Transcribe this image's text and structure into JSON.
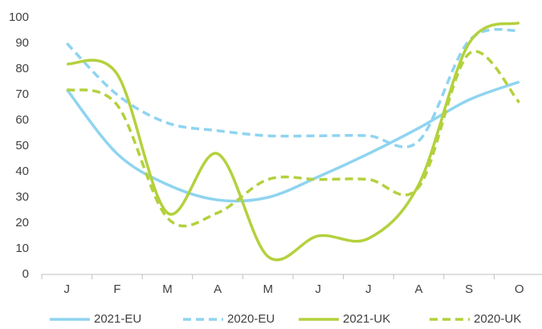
{
  "chart_data": {
    "type": "line",
    "categories": [
      "J",
      "F",
      "M",
      "A",
      "M",
      "J",
      "J",
      "A",
      "S",
      "O"
    ],
    "series": [
      {
        "name": "2021-EU",
        "color": "#8fd4f0",
        "dash": false,
        "values": [
          72,
          47,
          35,
          29,
          30,
          38,
          47,
          57,
          68,
          75
        ]
      },
      {
        "name": "2020-EU",
        "color": "#8fd4f0",
        "dash": true,
        "values": [
          90,
          70,
          59,
          56,
          54,
          54,
          54,
          52,
          91,
          95
        ]
      },
      {
        "name": "2021-UK",
        "color": "#b3d13d",
        "dash": false,
        "values": [
          82,
          78,
          24,
          47,
          7,
          15,
          14,
          35,
          90,
          98
        ]
      },
      {
        "name": "2020-UK",
        "color": "#b3d13d",
        "dash": true,
        "values": [
          72,
          66,
          22,
          24,
          37,
          37,
          37,
          34,
          86,
          67
        ]
      }
    ],
    "ylim": [
      0,
      100
    ],
    "yticks": [
      0,
      10,
      20,
      30,
      40,
      50,
      60,
      70,
      80,
      90,
      100
    ],
    "grid": false,
    "legend": "bottom"
  }
}
